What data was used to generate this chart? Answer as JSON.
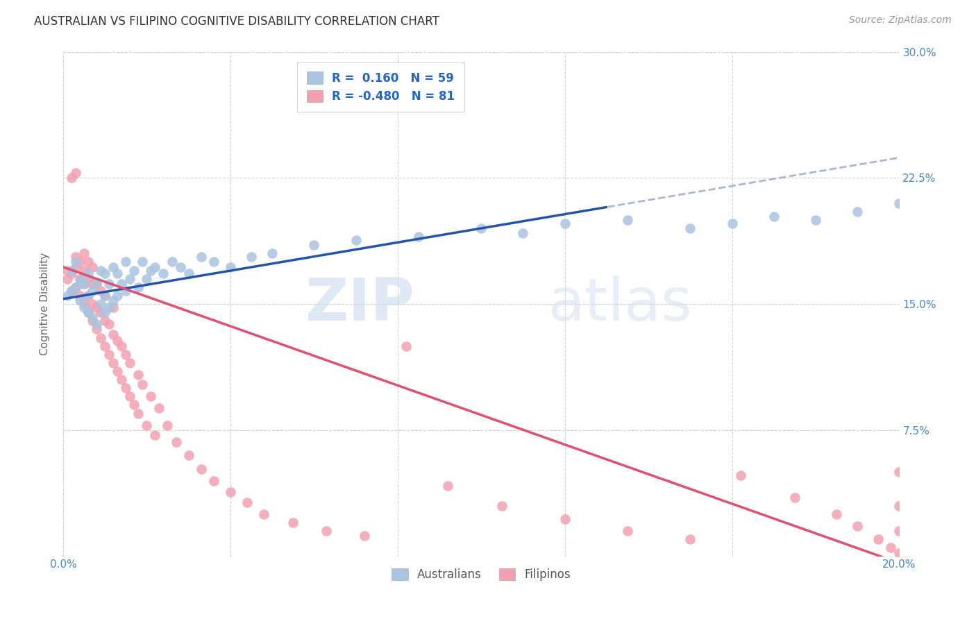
{
  "title": "AUSTRALIAN VS FILIPINO COGNITIVE DISABILITY CORRELATION CHART",
  "source": "Source: ZipAtlas.com",
  "ylabel": "Cognitive Disability",
  "xlim": [
    0.0,
    0.2
  ],
  "ylim": [
    0.0,
    0.3
  ],
  "xticks": [
    0.0,
    0.04,
    0.08,
    0.12,
    0.16,
    0.2
  ],
  "yticks": [
    0.0,
    0.075,
    0.15,
    0.225,
    0.3
  ],
  "xticklabels": [
    "0.0%",
    "",
    "",
    "",
    "",
    "20.0%"
  ],
  "yticklabels_right": [
    "",
    "7.5%",
    "15.0%",
    "22.5%",
    "30.0%"
  ],
  "aus_R": 0.16,
  "aus_N": 59,
  "fil_R": -0.48,
  "fil_N": 81,
  "aus_color": "#a8c4e0",
  "fil_color": "#f4a0b0",
  "aus_line_color": "#2255aa",
  "fil_line_color": "#e05070",
  "legend_label_color": "#2266cc",
  "watermark_zip": "ZIP",
  "watermark_atlas": "atlas",
  "background_color": "#ffffff",
  "grid_color": "#cccccc",
  "tick_color": "#4488cc",
  "aus_intercept": 0.153,
  "aus_slope": 0.42,
  "fil_intercept": 0.172,
  "fil_slope": -0.88,
  "aus_dashed_from": 0.13,
  "aus_x": [
    0.001,
    0.002,
    0.002,
    0.003,
    0.003,
    0.004,
    0.004,
    0.005,
    0.005,
    0.006,
    0.006,
    0.006,
    0.007,
    0.007,
    0.008,
    0.008,
    0.009,
    0.009,
    0.01,
    0.01,
    0.01,
    0.011,
    0.011,
    0.012,
    0.012,
    0.013,
    0.013,
    0.014,
    0.015,
    0.015,
    0.016,
    0.017,
    0.018,
    0.019,
    0.02,
    0.021,
    0.022,
    0.024,
    0.026,
    0.028,
    0.03,
    0.033,
    0.036,
    0.04,
    0.045,
    0.05,
    0.06,
    0.07,
    0.085,
    0.1,
    0.11,
    0.12,
    0.135,
    0.15,
    0.16,
    0.17,
    0.18,
    0.19,
    0.2
  ],
  "aus_y": [
    0.155,
    0.158,
    0.17,
    0.16,
    0.175,
    0.152,
    0.165,
    0.148,
    0.162,
    0.145,
    0.155,
    0.168,
    0.142,
    0.158,
    0.138,
    0.163,
    0.15,
    0.17,
    0.145,
    0.155,
    0.168,
    0.148,
    0.162,
    0.152,
    0.172,
    0.155,
    0.168,
    0.162,
    0.158,
    0.175,
    0.165,
    0.17,
    0.16,
    0.175,
    0.165,
    0.17,
    0.172,
    0.168,
    0.175,
    0.172,
    0.168,
    0.178,
    0.175,
    0.172,
    0.178,
    0.18,
    0.185,
    0.188,
    0.19,
    0.195,
    0.192,
    0.198,
    0.2,
    0.195,
    0.198,
    0.202,
    0.2,
    0.205,
    0.21
  ],
  "fil_x": [
    0.001,
    0.001,
    0.002,
    0.002,
    0.002,
    0.003,
    0.003,
    0.003,
    0.003,
    0.004,
    0.004,
    0.004,
    0.005,
    0.005,
    0.005,
    0.005,
    0.006,
    0.006,
    0.006,
    0.006,
    0.007,
    0.007,
    0.007,
    0.007,
    0.008,
    0.008,
    0.008,
    0.009,
    0.009,
    0.009,
    0.01,
    0.01,
    0.01,
    0.011,
    0.011,
    0.012,
    0.012,
    0.012,
    0.013,
    0.013,
    0.014,
    0.014,
    0.015,
    0.015,
    0.016,
    0.016,
    0.017,
    0.018,
    0.018,
    0.019,
    0.02,
    0.021,
    0.022,
    0.023,
    0.025,
    0.027,
    0.03,
    0.033,
    0.036,
    0.04,
    0.044,
    0.048,
    0.055,
    0.063,
    0.072,
    0.082,
    0.092,
    0.105,
    0.12,
    0.135,
    0.15,
    0.162,
    0.175,
    0.185,
    0.19,
    0.195,
    0.198,
    0.2,
    0.2,
    0.2,
    0.2
  ],
  "fil_y": [
    0.165,
    0.17,
    0.158,
    0.225,
    0.168,
    0.16,
    0.172,
    0.228,
    0.178,
    0.155,
    0.165,
    0.175,
    0.15,
    0.162,
    0.17,
    0.18,
    0.145,
    0.155,
    0.165,
    0.175,
    0.14,
    0.15,
    0.162,
    0.172,
    0.135,
    0.148,
    0.162,
    0.13,
    0.145,
    0.158,
    0.125,
    0.14,
    0.155,
    0.12,
    0.138,
    0.115,
    0.132,
    0.148,
    0.11,
    0.128,
    0.105,
    0.125,
    0.1,
    0.12,
    0.095,
    0.115,
    0.09,
    0.108,
    0.085,
    0.102,
    0.078,
    0.095,
    0.072,
    0.088,
    0.078,
    0.068,
    0.06,
    0.052,
    0.045,
    0.038,
    0.032,
    0.025,
    0.02,
    0.015,
    0.012,
    0.125,
    0.042,
    0.03,
    0.022,
    0.015,
    0.01,
    0.048,
    0.035,
    0.025,
    0.018,
    0.01,
    0.005,
    0.05,
    0.03,
    0.015,
    0.002
  ]
}
